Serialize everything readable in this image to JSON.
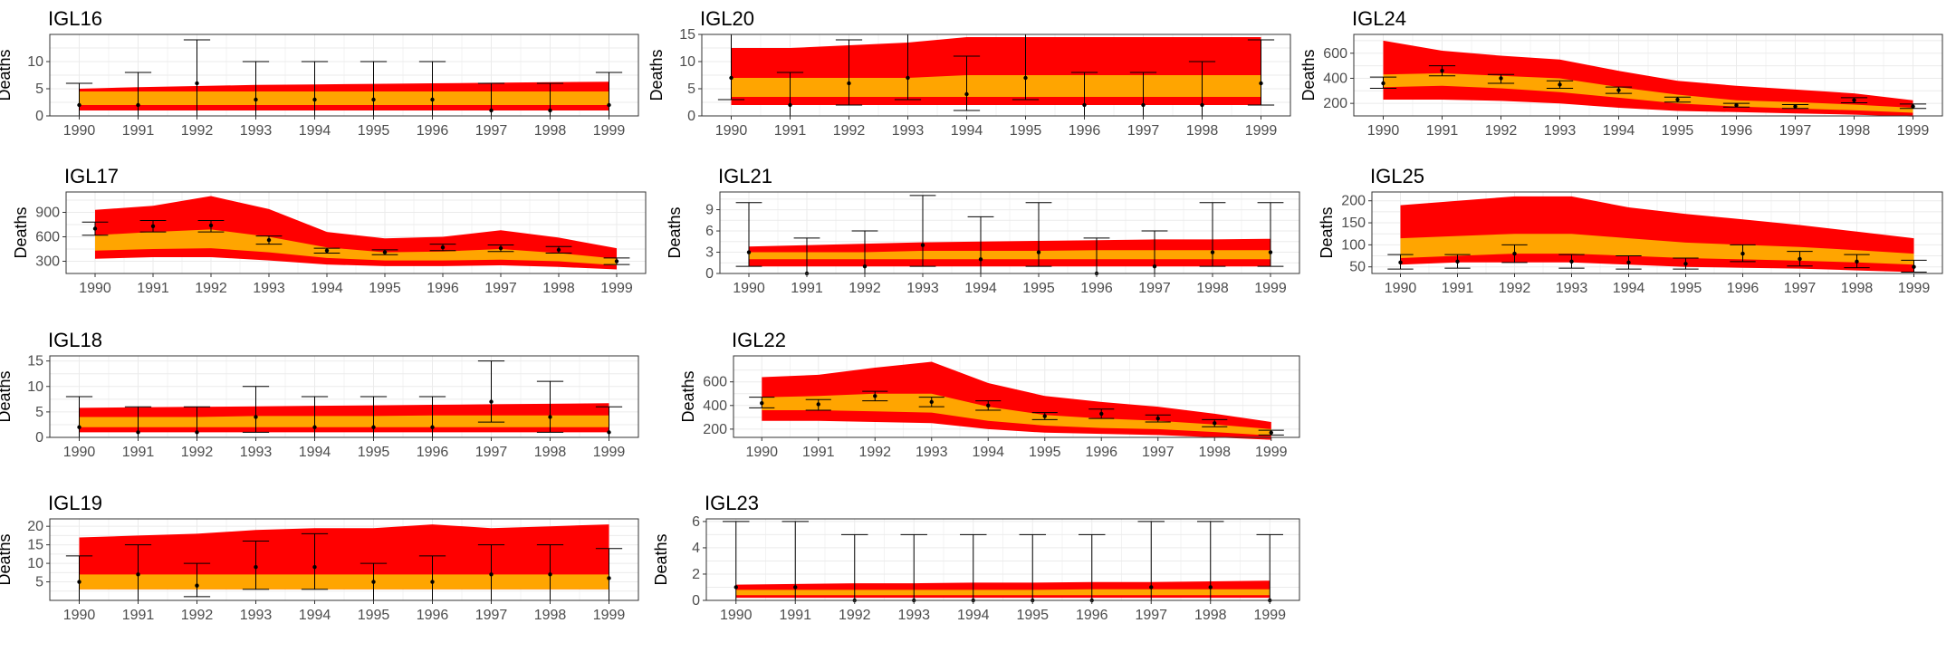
{
  "colors": {
    "outer_band": "#ff0000",
    "inner_band": "#ffa500",
    "errorbar": "#000000",
    "grid": "#ebebeb",
    "panel_border": "#333333"
  },
  "x_categories": [
    "1990",
    "1991",
    "1992",
    "1993",
    "1994",
    "1995",
    "1996",
    "1997",
    "1998",
    "1999"
  ],
  "chart_data": [
    {
      "type": "area",
      "title": "IGL16",
      "ylabel": "Deaths",
      "ylim": [
        0,
        15
      ],
      "yticks": [
        0,
        5,
        10
      ],
      "band_lower": [
        1,
        1,
        1,
        1,
        1,
        1,
        1,
        1,
        1,
        1
      ],
      "band_inner_low": [
        2,
        2,
        2,
        2,
        2,
        2,
        2,
        2,
        2,
        2
      ],
      "band_inner_high": [
        4.5,
        4.5,
        4.5,
        4.5,
        4.5,
        4.5,
        4.5,
        4.5,
        4.5,
        4.5
      ],
      "band_upper": [
        5,
        5.3,
        5.5,
        5.7,
        5.8,
        5.9,
        6,
        6.1,
        6.2,
        6.3
      ],
      "points": [
        2,
        2,
        6,
        3,
        3,
        3,
        3,
        1,
        1,
        2
      ],
      "err_low": [
        0,
        0,
        0,
        0,
        0,
        0,
        0,
        0,
        0,
        0
      ],
      "err_high": [
        6,
        8,
        14,
        10,
        10,
        10,
        10,
        6,
        6,
        8
      ]
    },
    {
      "type": "area",
      "title": "IGL20",
      "ylabel": "Deaths",
      "ylim": [
        0,
        15
      ],
      "yticks": [
        0,
        5,
        10,
        15
      ],
      "band_lower": [
        2,
        2,
        2,
        2,
        2,
        2,
        2,
        2,
        2,
        2
      ],
      "band_inner_low": [
        3.5,
        3.5,
        3.5,
        3.5,
        3.5,
        3.5,
        3.5,
        3.5,
        3.5,
        3.5
      ],
      "band_inner_high": [
        7,
        7,
        7,
        7,
        7.5,
        7.5,
        7.5,
        7.5,
        7.5,
        7.5
      ],
      "band_upper": [
        12.5,
        12.5,
        13,
        13.5,
        14.5,
        14.5,
        14.5,
        14.5,
        14.5,
        14.5
      ],
      "points": [
        7,
        2,
        6,
        7,
        4,
        7,
        2,
        2,
        2,
        6
      ],
      "err_low": [
        3,
        0,
        2,
        3,
        1,
        3,
        0,
        0,
        0,
        2
      ],
      "err_high": [
        15,
        8,
        14,
        15,
        11,
        15,
        8,
        8,
        10,
        14
      ]
    },
    {
      "type": "area",
      "title": "IGL24",
      "ylabel": "Deaths",
      "ylim": [
        100,
        750
      ],
      "yticks": [
        200,
        400,
        600
      ],
      "band_lower": [
        230,
        230,
        220,
        200,
        165,
        140,
        130,
        120,
        110,
        95
      ],
      "band_inner_low": [
        330,
        340,
        320,
        290,
        245,
        200,
        175,
        160,
        145,
        125
      ],
      "band_inner_high": [
        430,
        440,
        420,
        400,
        330,
        270,
        225,
        210,
        190,
        165
      ],
      "band_upper": [
        700,
        620,
        580,
        550,
        460,
        380,
        340,
        310,
        280,
        225
      ],
      "points": [
        360,
        460,
        400,
        350,
        305,
        230,
        185,
        175,
        225,
        175
      ],
      "err_low": [
        320,
        420,
        360,
        320,
        280,
        210,
        170,
        160,
        205,
        160
      ],
      "err_high": [
        410,
        500,
        430,
        380,
        330,
        250,
        200,
        190,
        245,
        195
      ]
    },
    {
      "type": "area",
      "title": "IGL17",
      "ylabel": "Deaths",
      "ylim": [
        150,
        1150
      ],
      "yticks": [
        300,
        600,
        900
      ],
      "band_lower": [
        330,
        350,
        350,
        310,
        260,
        240,
        240,
        250,
        230,
        200
      ],
      "band_inner_low": [
        430,
        450,
        460,
        410,
        340,
        310,
        310,
        320,
        300,
        250
      ],
      "band_inner_high": [
        620,
        660,
        690,
        600,
        470,
        410,
        420,
        450,
        400,
        330
      ],
      "band_upper": [
        930,
        980,
        1100,
        940,
        660,
        580,
        600,
        680,
        590,
        460
      ],
      "points": [
        700,
        730,
        740,
        560,
        430,
        410,
        470,
        460,
        440,
        300
      ],
      "err_low": [
        620,
        660,
        660,
        510,
        400,
        380,
        430,
        420,
        400,
        260
      ],
      "err_high": [
        780,
        800,
        800,
        610,
        460,
        440,
        510,
        500,
        480,
        340
      ]
    },
    {
      "type": "area",
      "title": "IGL21",
      "ylabel": "Deaths",
      "ylim": [
        0,
        11.5
      ],
      "yticks": [
        0,
        3,
        6,
        9
      ],
      "band_lower": [
        1,
        1,
        1,
        1,
        1,
        1,
        1,
        1,
        1,
        1
      ],
      "band_inner_low": [
        2,
        2,
        2,
        2,
        2,
        2,
        2,
        2,
        2,
        2
      ],
      "band_inner_high": [
        3,
        3,
        3,
        3.2,
        3.2,
        3.2,
        3.3,
        3.3,
        3.3,
        3.3
      ],
      "band_upper": [
        3.8,
        4,
        4.2,
        4.4,
        4.5,
        4.6,
        4.7,
        4.8,
        4.8,
        4.9
      ],
      "points": [
        3,
        0,
        1,
        4,
        2,
        3,
        0,
        1,
        3,
        3
      ],
      "err_low": [
        1,
        0,
        0,
        1,
        0,
        1,
        0,
        0,
        1,
        1
      ],
      "err_high": [
        10,
        5,
        6,
        11,
        8,
        10,
        5,
        6,
        10,
        10
      ]
    },
    {
      "type": "area",
      "title": "IGL25",
      "ylabel": "Deaths",
      "ylim": [
        35,
        220
      ],
      "yticks": [
        50,
        100,
        150,
        200
      ],
      "band_lower": [
        55,
        60,
        60,
        60,
        55,
        50,
        48,
        46,
        42,
        38
      ],
      "band_inner_low": [
        70,
        75,
        80,
        80,
        75,
        70,
        67,
        64,
        60,
        55
      ],
      "band_inner_high": [
        115,
        120,
        125,
        125,
        115,
        105,
        100,
        95,
        88,
        80
      ],
      "band_upper": [
        190,
        200,
        210,
        210,
        185,
        170,
        158,
        145,
        130,
        115
      ],
      "points": [
        60,
        62,
        80,
        62,
        60,
        57,
        80,
        68,
        62,
        50
      ],
      "err_low": [
        45,
        47,
        60,
        47,
        45,
        45,
        62,
        52,
        48,
        38
      ],
      "err_high": [
        78,
        78,
        100,
        78,
        75,
        70,
        100,
        85,
        78,
        65
      ]
    },
    {
      "type": "area",
      "title": "IGL18",
      "ylabel": "Deaths",
      "ylim": [
        0,
        16
      ],
      "yticks": [
        0,
        5,
        10,
        15
      ],
      "band_lower": [
        1,
        1,
        1,
        1,
        1,
        1,
        1,
        1,
        1,
        1
      ],
      "band_inner_low": [
        2,
        2,
        2,
        2,
        2,
        2,
        2,
        2,
        2,
        2
      ],
      "band_inner_high": [
        4,
        4,
        4,
        4.2,
        4.2,
        4.2,
        4.3,
        4.3,
        4.3,
        4.3
      ],
      "band_upper": [
        5.8,
        5.9,
        6,
        6.1,
        6.2,
        6.3,
        6.4,
        6.5,
        6.6,
        6.7
      ],
      "points": [
        2,
        1,
        1,
        4,
        2,
        2,
        2,
        7,
        4,
        1
      ],
      "err_low": [
        0,
        0,
        0,
        1,
        0,
        0,
        0,
        3,
        1,
        0
      ],
      "err_high": [
        8,
        6,
        6,
        10,
        8,
        8,
        8,
        15,
        11,
        6
      ]
    },
    {
      "type": "area",
      "title": "IGL22",
      "ylabel": "Deaths",
      "ylim": [
        130,
        820
      ],
      "yticks": [
        200,
        400,
        600
      ],
      "band_lower": [
        270,
        270,
        260,
        250,
        200,
        170,
        160,
        150,
        130,
        110
      ],
      "band_inner_low": [
        360,
        360,
        350,
        340,
        270,
        230,
        210,
        200,
        175,
        145
      ],
      "band_inner_high": [
        470,
        480,
        500,
        500,
        390,
        320,
        290,
        270,
        240,
        200
      ],
      "band_upper": [
        640,
        660,
        720,
        770,
        590,
        480,
        430,
        390,
        330,
        260
      ],
      "points": [
        420,
        410,
        480,
        430,
        400,
        310,
        330,
        290,
        250,
        170
      ],
      "err_low": [
        380,
        360,
        440,
        390,
        360,
        280,
        290,
        260,
        220,
        150
      ],
      "err_high": [
        470,
        450,
        520,
        470,
        440,
        340,
        370,
        320,
        280,
        190
      ]
    },
    {
      "type": "area",
      "title": "IGL19",
      "ylabel": "Deaths",
      "ylim": [
        0,
        22
      ],
      "yticks": [
        5,
        10,
        15,
        20
      ],
      "band_lower": [
        3,
        3,
        3,
        3,
        3,
        3,
        3,
        3,
        3,
        3
      ],
      "band_inner_low": [
        3,
        3,
        3,
        3,
        3,
        3,
        3,
        3,
        3,
        3
      ],
      "band_inner_high": [
        7,
        7,
        7,
        7,
        7,
        7,
        7,
        7,
        7,
        7
      ],
      "band_upper": [
        17,
        17.5,
        18,
        19,
        19.5,
        19.5,
        20.5,
        19.5,
        20,
        20.5
      ],
      "points": [
        5,
        7,
        4,
        9,
        9,
        5,
        5,
        7,
        7,
        6
      ],
      "err_low": [
        0,
        0,
        1,
        3,
        3,
        0,
        0,
        0,
        0,
        0
      ],
      "err_high": [
        12,
        15,
        10,
        16,
        18,
        10,
        12,
        15,
        15,
        14
      ]
    },
    {
      "type": "area",
      "title": "IGL23",
      "ylabel": "Deaths",
      "ylim": [
        0,
        6.2
      ],
      "yticks": [
        0,
        2,
        4,
        6
      ],
      "band_lower": [
        0.2,
        0.2,
        0.2,
        0.2,
        0.2,
        0.2,
        0.2,
        0.2,
        0.2,
        0.2
      ],
      "band_inner_low": [
        0.4,
        0.4,
        0.4,
        0.4,
        0.4,
        0.4,
        0.4,
        0.4,
        0.4,
        0.4
      ],
      "band_inner_high": [
        0.8,
        0.8,
        0.8,
        0.8,
        0.8,
        0.8,
        0.85,
        0.85,
        0.85,
        0.85
      ],
      "band_upper": [
        1.2,
        1.25,
        1.3,
        1.3,
        1.35,
        1.35,
        1.4,
        1.4,
        1.45,
        1.5
      ],
      "points": [
        1,
        1,
        0,
        0,
        0,
        0,
        0,
        1,
        1,
        0
      ],
      "err_low": [
        0,
        0,
        0,
        0,
        0,
        0,
        0,
        0,
        0,
        0
      ],
      "err_high": [
        6,
        6,
        5,
        5,
        5,
        5,
        5,
        6,
        6,
        5
      ]
    }
  ]
}
